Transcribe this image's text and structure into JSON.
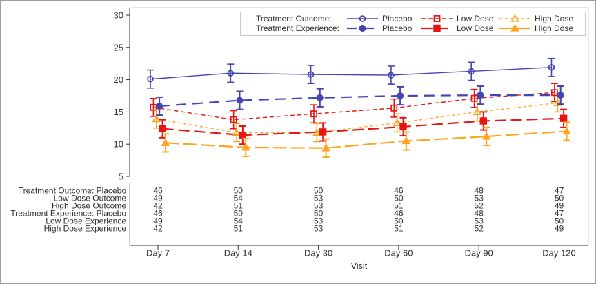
{
  "figure": {
    "kind": "sas-sgplot-output",
    "background": "#ffffff",
    "border_color": "#9e9e9e",
    "frame_color": "#cfcfcf",
    "axis_color": "#333333",
    "text_color": "#2f2f2f"
  },
  "legend": {
    "rows": [
      {
        "title": "Treatment Outcome:"
      },
      {
        "title": "Treatment Experience:"
      }
    ]
  },
  "chart_data": {
    "type": "line",
    "title": "",
    "xlabel": "Visit",
    "ylabel": "",
    "x_categories": [
      "Day 7",
      "Day 14",
      "Day 30",
      "Day 60",
      "Day 90",
      "Day 120"
    ],
    "yticks": [
      5,
      10,
      15,
      20,
      25,
      30
    ],
    "ylim": [
      5,
      30
    ],
    "grid": false,
    "legend_position": "top-inside",
    "error_bar_half": 1.4,
    "series": [
      {
        "id": "placebo-outcome",
        "group": "Treatment Outcome",
        "label": "Placebo",
        "color": "#4345b2",
        "marker": "circle",
        "filled": false,
        "dash": "solid",
        "width": 1.4,
        "values": [
          20.1,
          21.0,
          20.8,
          20.7,
          21.3,
          21.9
        ]
      },
      {
        "id": "low-dose-outcome",
        "group": "Treatment Outcome",
        "label": "Low Dose",
        "color": "#e81414",
        "marker": "square",
        "filled": false,
        "dash": "dash",
        "width": 1.4,
        "values": [
          15.7,
          13.8,
          14.7,
          15.6,
          17.1,
          18.0
        ]
      },
      {
        "id": "high-dose-outcome",
        "group": "Treatment Outcome",
        "label": "High Dose",
        "color": "#ffa41e",
        "marker": "triangle",
        "filled": false,
        "dash": "dot",
        "width": 1.4,
        "values": [
          13.9,
          11.8,
          11.8,
          13.3,
          15.0,
          16.4
        ]
      },
      {
        "id": "placebo-experience",
        "group": "Treatment Experience",
        "label": "Placebo",
        "color": "#4345b2",
        "marker": "circle",
        "filled": true,
        "dash": "longdash",
        "width": 2.2,
        "values": [
          15.9,
          16.8,
          17.2,
          17.5,
          17.6,
          17.6
        ]
      },
      {
        "id": "low-dose-experience",
        "group": "Treatment Experience",
        "label": "Low Dose",
        "color": "#e81414",
        "marker": "square",
        "filled": true,
        "dash": "longdash2",
        "width": 2.2,
        "values": [
          12.4,
          11.4,
          11.9,
          12.7,
          13.6,
          14.0
        ]
      },
      {
        "id": "high-dose-experience",
        "group": "Treatment Experience",
        "label": "High Dose",
        "color": "#ffa41e",
        "marker": "triangle",
        "filled": true,
        "dash": "longdash3",
        "width": 2.2,
        "values": [
          10.2,
          9.5,
          9.4,
          10.5,
          11.2,
          12.0
        ]
      }
    ],
    "axis_table": {
      "rows": [
        {
          "label": "Treatment Outcome: Placebo",
          "values": [
            46,
            50,
            50,
            46,
            48,
            47
          ]
        },
        {
          "label": "Low Dose Outcome",
          "values": [
            49,
            54,
            53,
            50,
            53,
            50
          ]
        },
        {
          "label": "High Dose Outcome",
          "values": [
            42,
            51,
            53,
            51,
            52,
            49
          ]
        },
        {
          "label": "Treatment Experience: Placebo",
          "values": [
            46,
            50,
            50,
            46,
            48,
            47
          ]
        },
        {
          "label": "Low Dose Experience",
          "values": [
            49,
            54,
            53,
            50,
            53,
            50
          ]
        },
        {
          "label": "High Dose Experience",
          "values": [
            42,
            51,
            53,
            51,
            52,
            49
          ]
        }
      ]
    }
  }
}
